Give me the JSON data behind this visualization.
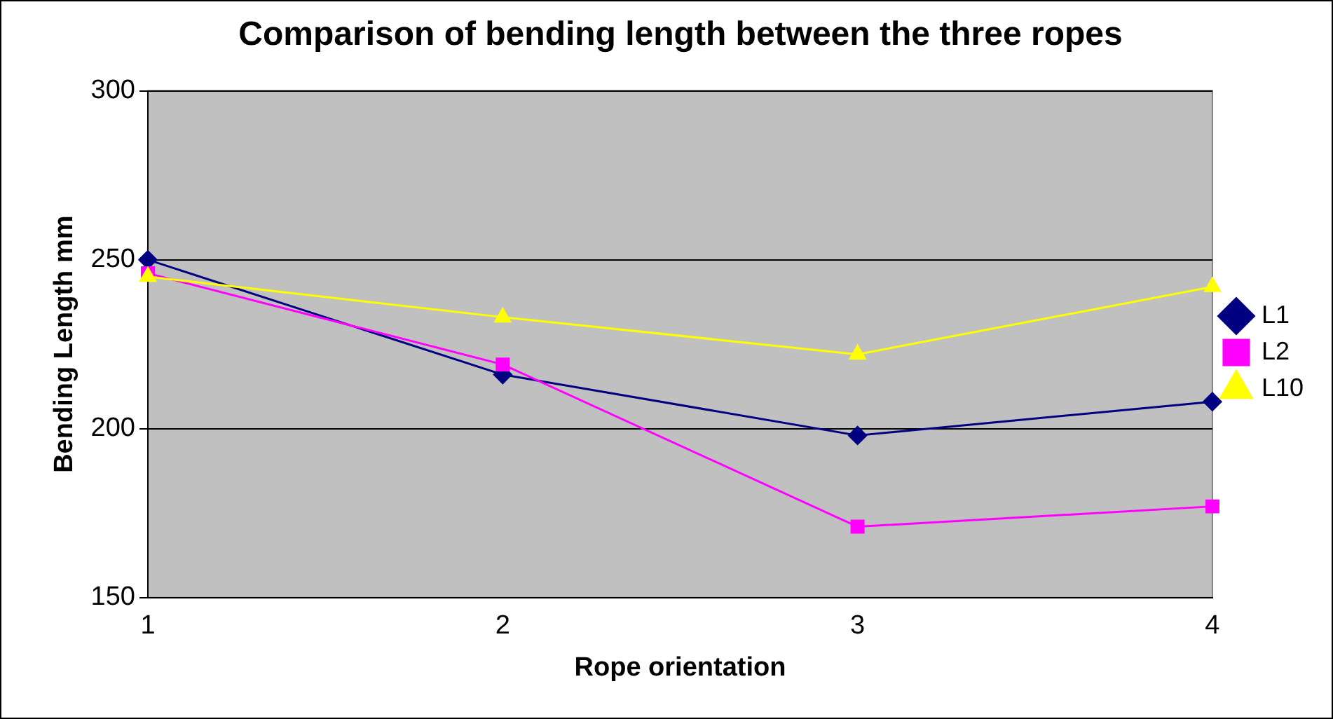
{
  "chart_data": {
    "type": "line",
    "title": "Comparison of bending length between the three ropes",
    "xlabel": "Rope orientation",
    "ylabel": "Bending Length mm",
    "categories": [
      "1",
      "2",
      "3",
      "4"
    ],
    "series": [
      {
        "name": "L1",
        "color": "#000080",
        "marker": "diamond",
        "values": [
          250,
          216,
          198,
          208
        ]
      },
      {
        "name": "L2",
        "color": "#ff00ff",
        "marker": "square",
        "values": [
          246,
          219,
          171,
          177
        ]
      },
      {
        "name": "L10",
        "color": "#ffff00",
        "marker": "triangle",
        "values": [
          245,
          233,
          222,
          242
        ]
      }
    ],
    "ylim": [
      150,
      300
    ],
    "yticks": [
      150,
      200,
      250,
      300
    ],
    "grid": "y",
    "legend": "right"
  }
}
